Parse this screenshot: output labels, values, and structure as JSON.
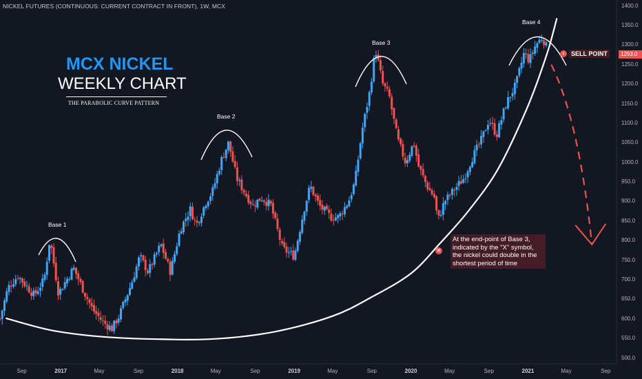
{
  "header": {
    "symbol_line": "NICKEL FUTURES (CONTINUOUS: CURRENT CONTRACT IN FRONT), 1W, MCX"
  },
  "title_block": {
    "main": "MCX NICKEL",
    "sub": "WEEKLY CHART",
    "caption": "THE PARABOLIC CURVE PATTERN"
  },
  "annotations": {
    "bases": [
      "Base 1",
      "Base 2",
      "Base 3",
      "Base 4"
    ],
    "note": "At the end-point of Base 3, indicated by the \"X\" symbol, the nickel could double in the shortest period of time",
    "note_marker_icon": "x-circle-icon",
    "sell_point": "SELL POINT",
    "sell_icon": "arrow-left-circle-icon"
  },
  "price_tag": {
    "value": "1293.0",
    "color": "#f05350"
  },
  "colors": {
    "background": "#131722",
    "up": "#42a5f5",
    "down": "#ef5350",
    "accent_title": "#2196f3",
    "curve": "#ffffff"
  },
  "chart_data": {
    "type": "candlestick",
    "timeframe": "1W",
    "title": "NICKEL FUTURES (CONTINUOUS: CURRENT CONTRACT IN FRONT), 1W, MCX",
    "xlabel": "",
    "ylabel": "",
    "ylim": [
      485,
      1415
    ],
    "x_range": [
      "2016-06-25",
      "2021-10-05"
    ],
    "y_ticks": [
      "1400.0",
      "1350.0",
      "1300.0",
      "1250.0",
      "1200.0",
      "1150.0",
      "1100.0",
      "1050.0",
      "1000.0",
      "950.0",
      "900.0",
      "850.0",
      "800.0",
      "750.0",
      "700.0",
      "650.0",
      "600.0",
      "550.0",
      "500.0"
    ],
    "x_ticks": [
      {
        "label": "Sep",
        "date": "2016-09-01",
        "year": false
      },
      {
        "label": "2017",
        "date": "2017-01-01",
        "year": true
      },
      {
        "label": "May",
        "date": "2017-05-01",
        "year": false
      },
      {
        "label": "Sep",
        "date": "2017-09-01",
        "year": false
      },
      {
        "label": "2018",
        "date": "2018-01-01",
        "year": true
      },
      {
        "label": "May",
        "date": "2018-05-01",
        "year": false
      },
      {
        "label": "Sep",
        "date": "2018-09-01",
        "year": false
      },
      {
        "label": "2019",
        "date": "2019-01-01",
        "year": true
      },
      {
        "label": "May",
        "date": "2019-05-01",
        "year": false
      },
      {
        "label": "Sep",
        "date": "2019-09-01",
        "year": false
      },
      {
        "label": "2020",
        "date": "2020-01-01",
        "year": true
      },
      {
        "label": "May",
        "date": "2020-05-01",
        "year": false
      },
      {
        "label": "Sep",
        "date": "2020-09-01",
        "year": false
      },
      {
        "label": "2021",
        "date": "2021-01-01",
        "year": true
      },
      {
        "label": "May",
        "date": "2021-05-01",
        "year": false
      },
      {
        "label": "Sep",
        "date": "2021-09-01",
        "year": false
      }
    ],
    "close_path": [
      [
        "2016-06-25",
        600
      ],
      [
        "2016-07-20",
        680
      ],
      [
        "2016-08-20",
        710
      ],
      [
        "2016-10-10",
        660
      ],
      [
        "2016-11-10",
        700
      ],
      [
        "2016-11-28",
        805
      ],
      [
        "2016-12-25",
        665
      ],
      [
        "2017-02-10",
        730
      ],
      [
        "2017-03-20",
        660
      ],
      [
        "2017-04-10",
        625
      ],
      [
        "2017-05-15",
        590
      ],
      [
        "2017-06-10",
        575
      ],
      [
        "2017-07-01",
        605
      ],
      [
        "2017-08-10",
        690
      ],
      [
        "2017-09-05",
        760
      ],
      [
        "2017-10-01",
        720
      ],
      [
        "2017-11-10",
        790
      ],
      [
        "2017-12-10",
        720
      ],
      [
        "2018-01-10",
        830
      ],
      [
        "2018-02-10",
        880
      ],
      [
        "2018-03-01",
        840
      ],
      [
        "2018-04-01",
        900
      ],
      [
        "2018-04-20",
        925
      ],
      [
        "2018-05-20",
        1010
      ],
      [
        "2018-06-10",
        1050
      ],
      [
        "2018-07-05",
        960
      ],
      [
        "2018-08-01",
        920
      ],
      [
        "2018-08-25",
        890
      ],
      [
        "2018-09-20",
        910
      ],
      [
        "2018-10-20",
        890
      ],
      [
        "2018-11-25",
        780
      ],
      [
        "2019-01-01",
        760
      ],
      [
        "2019-02-01",
        880
      ],
      [
        "2019-02-20",
        940
      ],
      [
        "2019-03-20",
        890
      ],
      [
        "2019-04-25",
        860
      ],
      [
        "2019-05-20",
        860
      ],
      [
        "2019-06-20",
        900
      ],
      [
        "2019-07-10",
        950
      ],
      [
        "2019-08-01",
        1080
      ],
      [
        "2019-08-25",
        1180
      ],
      [
        "2019-09-12",
        1290
      ],
      [
        "2019-10-05",
        1200
      ],
      [
        "2019-10-25",
        1170
      ],
      [
        "2019-11-20",
        1060
      ],
      [
        "2019-12-15",
        1000
      ],
      [
        "2020-01-10",
        1050
      ],
      [
        "2020-01-25",
        990
      ],
      [
        "2020-02-20",
        940
      ],
      [
        "2020-03-15",
        910
      ],
      [
        "2020-03-25",
        850
      ],
      [
        "2020-04-15",
        900
      ],
      [
        "2020-05-15",
        930
      ],
      [
        "2020-06-15",
        960
      ],
      [
        "2020-07-10",
        1010
      ],
      [
        "2020-08-10",
        1060
      ],
      [
        "2020-09-01",
        1110
      ],
      [
        "2020-09-25",
        1070
      ],
      [
        "2020-10-25",
        1150
      ],
      [
        "2020-11-25",
        1200
      ],
      [
        "2020-12-20",
        1280
      ],
      [
        "2021-01-05",
        1260
      ],
      [
        "2021-01-25",
        1300
      ],
      [
        "2021-02-15",
        1320
      ],
      [
        "2021-03-01",
        1293
      ]
    ],
    "curve_path": [
      [
        "2016-07-15",
        601
      ],
      [
        "2016-12-01",
        571
      ],
      [
        "2017-05-01",
        555
      ],
      [
        "2017-11-01",
        548
      ],
      [
        "2018-05-01",
        549
      ],
      [
        "2018-11-01",
        567
      ],
      [
        "2019-05-01",
        607
      ],
      [
        "2019-09-01",
        656
      ],
      [
        "2020-01-01",
        716
      ],
      [
        "2020-04-01",
        793
      ],
      [
        "2020-07-01",
        878
      ],
      [
        "2020-10-01",
        985
      ],
      [
        "2021-01-01",
        1144
      ],
      [
        "2021-03-01",
        1276
      ],
      [
        "2021-04-01",
        1367
      ]
    ],
    "forecast_path": [
      [
        "2021-03-15",
        1250
      ],
      [
        "2021-06-10",
        1000
      ],
      [
        "2021-07-20",
        790
      ]
    ]
  }
}
